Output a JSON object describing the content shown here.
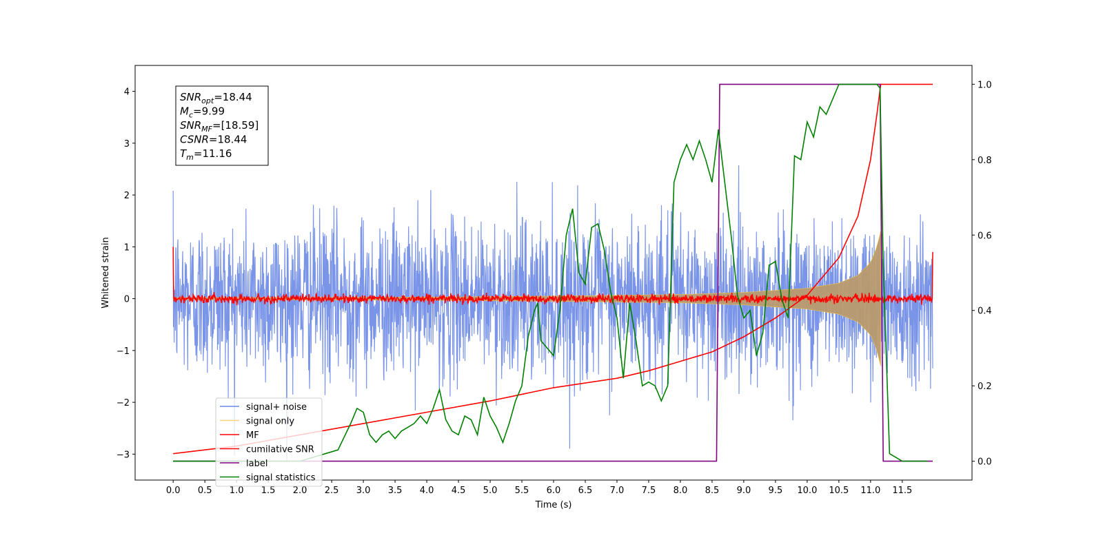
{
  "chart_data": {
    "type": "line",
    "xlabel": "Time (s)",
    "ylabel": "Whitened strain",
    "xlim": [
      -0.6,
      12.6
    ],
    "ylim": [
      -3.5,
      4.5
    ],
    "ylim_right": [
      -0.05,
      1.05
    ],
    "x_ticks": [
      "0.0",
      "0.5",
      "1.0",
      "1.5",
      "2.0",
      "2.5",
      "3.0",
      "3.5",
      "4.0",
      "4.5",
      "5.0",
      "5.5",
      "6.0",
      "6.5",
      "7.0",
      "7.5",
      "8.0",
      "8.5",
      "9.0",
      "9.5",
      "10.0",
      "10.5",
      "11.0",
      "11.5"
    ],
    "y_ticks_left": [
      "4",
      "3",
      "2",
      "1",
      "0",
      "−1",
      "−2",
      "−3"
    ],
    "y_ticks_left_values": [
      4,
      3,
      2,
      1,
      0,
      -1,
      -2,
      -3
    ],
    "y_ticks_right": [
      "1.0",
      "0.8",
      "0.6",
      "0.4",
      "0.2",
      "0.0"
    ],
    "y_ticks_right_values": [
      1.0,
      0.8,
      0.6,
      0.4,
      0.2,
      0.0
    ],
    "grid": false,
    "legend_placement": "lower-left",
    "annotation": [
      {
        "base": "SNR",
        "sub": "opt",
        "rest": "=18.44"
      },
      {
        "base": "M",
        "sub": "c",
        "rest": "=9.99"
      },
      {
        "base": "SNR",
        "sub": "MF",
        "rest": "=[18.59]"
      },
      {
        "base": "CSNR",
        "sub": "",
        "rest": "=18.44"
      },
      {
        "base": "T",
        "sub": "m",
        "rest": "=11.16"
      }
    ],
    "series": [
      {
        "name": "signal+ noise",
        "color": "#6b88e6",
        "axis": "left",
        "kind": "noise",
        "amplitude_sigma": 0.75,
        "x_range": [
          0.0,
          11.98
        ]
      },
      {
        "name": "signal only",
        "color": "#f5c242",
        "axis": "left",
        "kind": "chirp",
        "envelope": {
          "x": [
            0.0,
            4.0,
            6.0,
            8.0,
            9.0,
            10.0,
            10.5,
            10.8,
            11.0,
            11.1,
            11.16
          ],
          "y": [
            0.02,
            0.03,
            0.05,
            0.08,
            0.12,
            0.2,
            0.3,
            0.45,
            0.7,
            1.0,
            1.3
          ]
        },
        "x_range": [
          0.0,
          11.16
        ]
      },
      {
        "name": "MF",
        "color": "#ff0000",
        "axis": "left",
        "kind": "mf",
        "amplitude_sigma": 0.04,
        "edge_values": [
          1.0,
          0.9
        ],
        "x_range": [
          0.0,
          11.98
        ]
      },
      {
        "name": "cumilative SNR",
        "color": "#ff0000",
        "axis": "right",
        "kind": "curve",
        "x": [
          0.0,
          1.0,
          2.0,
          3.0,
          4.0,
          5.0,
          6.0,
          7.0,
          7.5,
          8.0,
          8.5,
          9.0,
          9.5,
          10.0,
          10.5,
          10.8,
          11.0,
          11.1,
          11.16,
          11.98
        ],
        "y": [
          0.02,
          0.04,
          0.07,
          0.1,
          0.13,
          0.16,
          0.195,
          0.22,
          0.24,
          0.265,
          0.29,
          0.33,
          0.38,
          0.44,
          0.54,
          0.65,
          0.8,
          0.92,
          1.0,
          1.0
        ]
      },
      {
        "name": "label",
        "color": "#800080",
        "axis": "right",
        "kind": "curve",
        "x": [
          0.0,
          8.57,
          8.62,
          11.15,
          11.2,
          11.98
        ],
        "y": [
          0.0,
          0.0,
          1.0,
          1.0,
          0.0,
          0.0
        ]
      },
      {
        "name": "signal statistics",
        "color": "#008000",
        "axis": "right",
        "kind": "curve",
        "x": [
          0.0,
          1.0,
          2.0,
          2.4,
          2.6,
          2.8,
          2.9,
          3.0,
          3.1,
          3.2,
          3.3,
          3.4,
          3.5,
          3.6,
          3.7,
          3.8,
          3.9,
          4.0,
          4.1,
          4.2,
          4.3,
          4.4,
          4.5,
          4.6,
          4.7,
          4.8,
          4.9,
          5.0,
          5.1,
          5.2,
          5.3,
          5.4,
          5.5,
          5.6,
          5.7,
          5.75,
          5.8,
          5.9,
          6.0,
          6.1,
          6.2,
          6.3,
          6.4,
          6.5,
          6.6,
          6.7,
          6.8,
          6.9,
          7.0,
          7.1,
          7.2,
          7.3,
          7.4,
          7.5,
          7.6,
          7.7,
          7.8,
          7.9,
          8.0,
          8.1,
          8.2,
          8.3,
          8.4,
          8.5,
          8.6,
          8.7,
          8.8,
          8.9,
          9.0,
          9.1,
          9.2,
          9.3,
          9.4,
          9.5,
          9.6,
          9.7,
          9.8,
          9.9,
          10.0,
          10.1,
          10.2,
          10.3,
          10.4,
          10.5,
          10.6,
          10.8,
          11.0,
          11.1,
          11.15,
          11.2,
          11.3,
          11.5,
          11.9
        ],
        "y": [
          0.0,
          0.0,
          0.0,
          0.02,
          0.03,
          0.1,
          0.14,
          0.13,
          0.07,
          0.05,
          0.07,
          0.08,
          0.06,
          0.08,
          0.09,
          0.1,
          0.12,
          0.1,
          0.14,
          0.19,
          0.11,
          0.08,
          0.07,
          0.12,
          0.11,
          0.07,
          0.17,
          0.12,
          0.09,
          0.05,
          0.1,
          0.16,
          0.2,
          0.33,
          0.4,
          0.42,
          0.32,
          0.3,
          0.28,
          0.4,
          0.6,
          0.67,
          0.5,
          0.47,
          0.62,
          0.63,
          0.56,
          0.45,
          0.38,
          0.22,
          0.42,
          0.32,
          0.2,
          0.21,
          0.2,
          0.16,
          0.2,
          0.74,
          0.8,
          0.84,
          0.8,
          0.85,
          0.8,
          0.74,
          0.88,
          0.74,
          0.6,
          0.44,
          0.38,
          0.4,
          0.28,
          0.34,
          0.52,
          0.53,
          0.43,
          0.38,
          0.81,
          0.8,
          0.9,
          0.86,
          0.94,
          0.92,
          0.96,
          1.0,
          1.0,
          1.0,
          1.0,
          1.0,
          0.99,
          0.52,
          0.02,
          0.0,
          0.0
        ]
      }
    ]
  }
}
